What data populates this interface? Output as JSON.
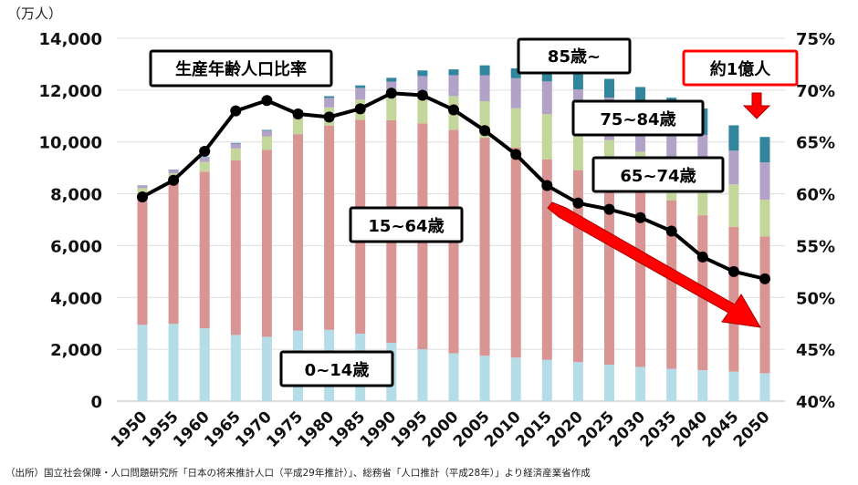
{
  "chart_data": {
    "type": "bar",
    "stacked": true,
    "unit_label": "（万人）",
    "categories": [
      "1950",
      "1955",
      "1960",
      "1965",
      "1970",
      "1975",
      "1980",
      "1985",
      "1990",
      "1995",
      "2000",
      "2005",
      "2010",
      "2015",
      "2020",
      "2025",
      "2030",
      "2035",
      "2040",
      "2045",
      "2050"
    ],
    "series": [
      {
        "name": "0~14歳",
        "color": "#b4dde8",
        "values": [
          2943,
          2980,
          2807,
          2553,
          2482,
          2722,
          2751,
          2603,
          2249,
          2001,
          1847,
          1752,
          1680,
          1595,
          1507,
          1407,
          1321,
          1246,
          1194,
          1138,
          1077
        ]
      },
      {
        "name": "15~64歳",
        "color": "#d99594",
        "values": [
          4966,
          5473,
          6047,
          6744,
          7212,
          7581,
          7883,
          8251,
          8590,
          8716,
          8622,
          8409,
          8103,
          7728,
          7406,
          7170,
          6875,
          6494,
          5978,
          5584,
          5275
        ]
      },
      {
        "name": "65~74歳",
        "color": "#c4d79b",
        "values": [
          309,
          338,
          374,
          452,
          516,
          600,
          700,
          780,
          892,
          1109,
          1301,
          1412,
          1517,
          1752,
          1747,
          1497,
          1428,
          1522,
          1681,
          1643,
          1424
        ]
      },
      {
        "name": "75~84歳",
        "color": "#b3a2c7",
        "values": [
          97,
          127,
          163,
          187,
          224,
          285,
          366,
          452,
          597,
          717,
          807,
          1000,
          1160,
          1262,
          1365,
          1640,
          1645,
          1445,
          1420,
          1300,
          1437
        ]
      },
      {
        "name": "85歳~",
        "color": "#31859c",
        "values": [
          11,
          14,
          19,
          25,
          31,
          40,
          65,
          95,
          147,
          216,
          224,
          383,
          380,
          502,
          600,
          720,
          851,
          1000,
          1020,
          977,
          979
        ]
      }
    ],
    "line": {
      "name": "生産年齢人口比率",
      "axis": "right",
      "values": [
        59.7,
        61.3,
        64.1,
        68.0,
        69.0,
        67.7,
        67.4,
        68.2,
        69.7,
        69.5,
        68.1,
        66.1,
        63.8,
        60.8,
        59.1,
        58.5,
        57.7,
        56.4,
        53.9,
        52.5,
        51.8
      ]
    },
    "ylim": [
      0,
      14000
    ],
    "yticks": [
      "0",
      "2,000",
      "4,000",
      "6,000",
      "8,000",
      "10,000",
      "12,000",
      "14,000"
    ],
    "y2lim": [
      40,
      75
    ],
    "y2ticks": [
      "40%",
      "45%",
      "50%",
      "55%",
      "60%",
      "65%",
      "70%",
      "75%"
    ],
    "grid": true,
    "annotations": {
      "ratio": "生産年齢人口比率",
      "age85": "85歳~",
      "age75": "75~84歳",
      "age65": "65~74歳",
      "age15": "15~64歳",
      "age0": "0~14歳",
      "total": "約1億人"
    },
    "source": "（出所）国立社会保障・人口問題研究所「日本の将来推計人口（平成29年推計）」、総務省「人口推計（平成28年）」より経済産業省作成"
  }
}
